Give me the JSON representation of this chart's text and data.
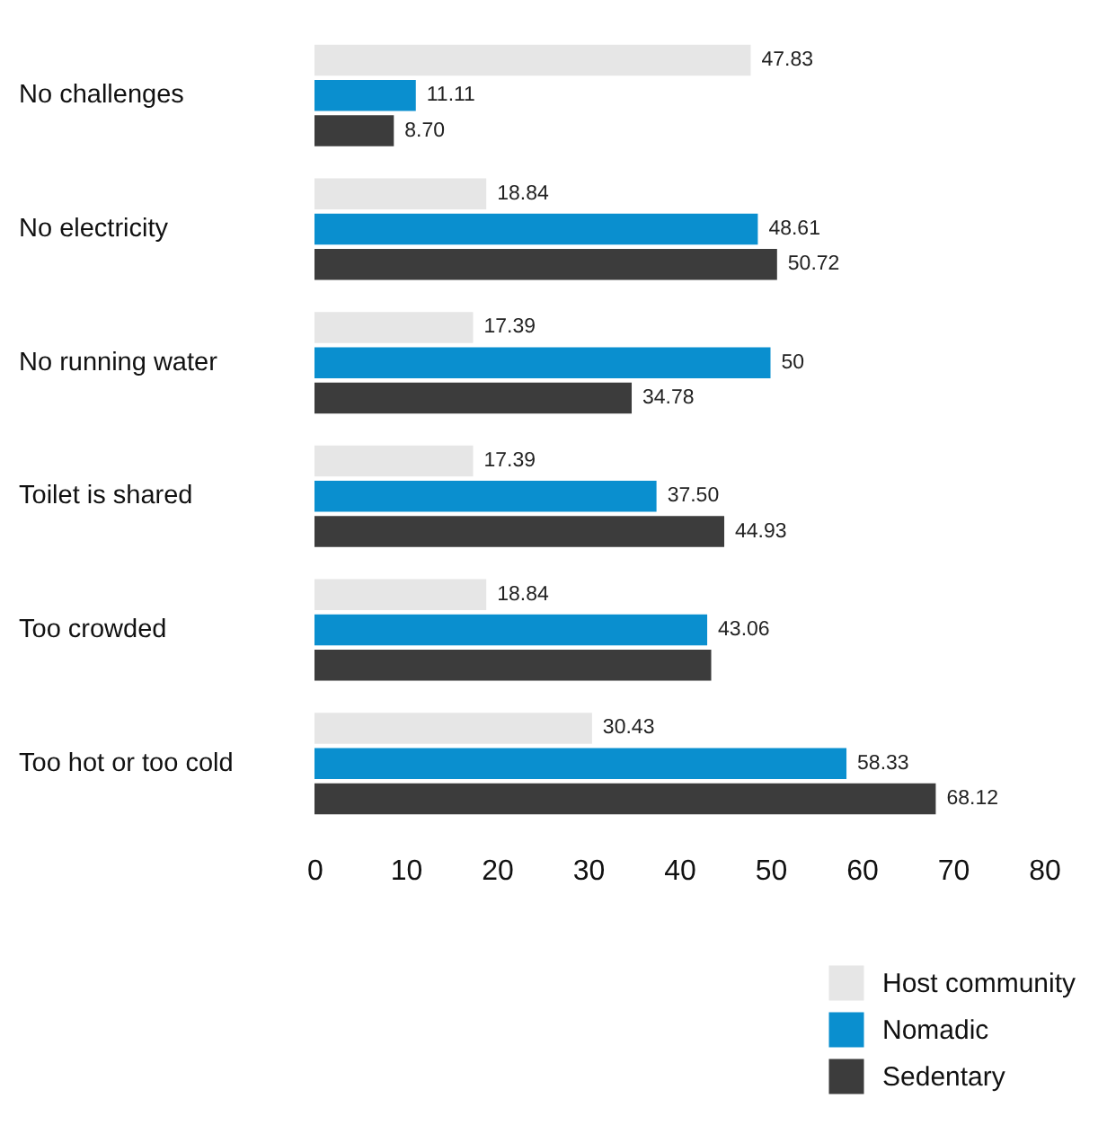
{
  "chart_data": {
    "type": "bar",
    "orientation": "horizontal",
    "categories": [
      "No challenges",
      "No electricity",
      "No running water",
      "Toilet is shared",
      "Too crowded",
      "Too hot or too cold"
    ],
    "series": [
      {
        "name": "Host community",
        "color": "#e6e6e6",
        "values": [
          47.83,
          18.84,
          17.39,
          17.39,
          18.84,
          30.43
        ],
        "value_labels": [
          "47.83",
          "18.84",
          "17.39",
          "17.39",
          "18.84",
          "30.43"
        ]
      },
      {
        "name": "Nomadic",
        "color": "#0a8fcf",
        "values": [
          11.11,
          48.61,
          50,
          37.5,
          43.06,
          58.33
        ],
        "value_labels": [
          "11.11",
          "48.61",
          "50",
          "37.50",
          "43.06",
          "58.33"
        ]
      },
      {
        "name": "Sedentary",
        "color": "#3c3c3c",
        "values": [
          8.7,
          50.72,
          34.78,
          44.93,
          43.5,
          68.12
        ],
        "value_labels": [
          "8.70",
          "50.72",
          "34.78",
          "44.93",
          null,
          "68.12"
        ]
      }
    ],
    "xlim": [
      0,
      80
    ],
    "xticks": [
      0,
      10,
      20,
      30,
      40,
      50,
      60,
      70,
      80
    ],
    "legend": "bottom right"
  }
}
